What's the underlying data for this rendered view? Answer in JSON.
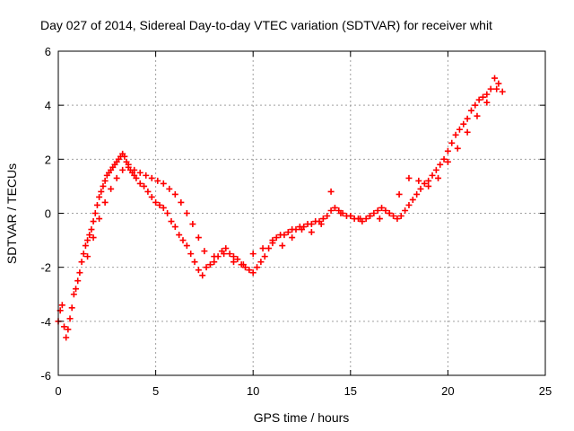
{
  "chart_data": {
    "type": "scatter",
    "title": "Day 027 of 2014, Sidereal Day-to-day VTEC variation (SDTVAR) for receiver whit",
    "xlabel": "GPS time / hours",
    "ylabel": "SDTVAR / TECUs",
    "xlim": [
      0,
      25
    ],
    "ylim": [
      -6,
      6
    ],
    "xticks": [
      0,
      5,
      10,
      15,
      20,
      25
    ],
    "yticks": [
      -6,
      -4,
      -2,
      0,
      2,
      4,
      6
    ],
    "grid": true,
    "marker": "+",
    "series_color": "#ff0000",
    "series": [
      {
        "name": "SDTVAR",
        "x": [
          0.0,
          0.1,
          0.2,
          0.3,
          0.4,
          0.5,
          0.6,
          0.7,
          0.8,
          0.9,
          1.0,
          1.1,
          1.2,
          1.3,
          1.4,
          1.5,
          1.6,
          1.7,
          1.8,
          1.9,
          2.0,
          2.1,
          2.2,
          2.3,
          2.4,
          2.5,
          2.6,
          2.7,
          2.8,
          2.9,
          3.0,
          3.1,
          3.2,
          3.3,
          3.4,
          3.5,
          3.6,
          3.7,
          3.8,
          3.9,
          4.0,
          4.2,
          4.4,
          4.6,
          4.8,
          5.0,
          5.2,
          5.4,
          5.6,
          5.8,
          6.0,
          6.2,
          6.4,
          6.6,
          6.8,
          7.0,
          7.2,
          7.4,
          7.6,
          7.8,
          8.0,
          8.2,
          8.4,
          8.6,
          8.8,
          9.0,
          9.2,
          9.4,
          9.6,
          9.8,
          10.0,
          10.2,
          10.4,
          10.6,
          10.8,
          11.0,
          11.2,
          11.4,
          11.6,
          11.8,
          12.0,
          12.2,
          12.4,
          12.6,
          12.8,
          13.0,
          13.2,
          13.4,
          13.6,
          13.8,
          14.0,
          14.2,
          14.4,
          14.6,
          14.8,
          15.0,
          15.2,
          15.4,
          15.6,
          15.8,
          16.0,
          16.2,
          16.4,
          16.6,
          16.8,
          17.0,
          17.2,
          17.4,
          17.6,
          17.8,
          18.0,
          18.2,
          18.4,
          18.6,
          18.8,
          19.0,
          19.2,
          19.4,
          19.6,
          19.8,
          20.0,
          20.2,
          20.4,
          20.6,
          20.8,
          21.0,
          21.2,
          21.4,
          21.6,
          21.8,
          22.0,
          22.2,
          22.4,
          22.6,
          22.8
        ],
        "y": [
          -4.0,
          -3.6,
          -3.4,
          -4.2,
          -4.6,
          -4.3,
          -3.9,
          -3.5,
          -3.0,
          -2.8,
          -2.5,
          -2.2,
          -1.8,
          -1.5,
          -1.2,
          -1.0,
          -0.8,
          -0.6,
          -0.3,
          0.0,
          0.3,
          0.6,
          0.8,
          1.0,
          1.2,
          1.4,
          1.5,
          1.6,
          1.7,
          1.8,
          1.9,
          2.0,
          2.1,
          2.2,
          2.1,
          1.9,
          1.7,
          1.6,
          1.5,
          1.4,
          1.3,
          1.1,
          1.0,
          0.8,
          0.6,
          0.4,
          0.3,
          0.2,
          0.0,
          -0.3,
          -0.5,
          -0.8,
          -1.0,
          -1.2,
          -1.5,
          -1.8,
          -2.1,
          -2.3,
          -2.0,
          -1.9,
          -1.8,
          -1.6,
          -1.4,
          -1.3,
          -1.5,
          -1.6,
          -1.7,
          -1.9,
          -2.0,
          -2.1,
          -2.2,
          -2.0,
          -1.8,
          -1.6,
          -1.3,
          -1.1,
          -0.9,
          -0.8,
          -0.8,
          -0.7,
          -0.6,
          -0.6,
          -0.5,
          -0.5,
          -0.4,
          -0.4,
          -0.3,
          -0.3,
          -0.2,
          -0.1,
          0.8,
          0.2,
          0.1,
          0.0,
          -0.1,
          -0.1,
          -0.2,
          -0.2,
          -0.3,
          -0.2,
          -0.1,
          0.0,
          0.1,
          0.2,
          0.1,
          0.0,
          -0.1,
          -0.2,
          -0.1,
          0.1,
          0.3,
          0.5,
          0.7,
          0.9,
          1.1,
          1.2,
          1.4,
          1.6,
          1.8,
          2.0,
          2.3,
          2.6,
          2.9,
          3.1,
          3.3,
          3.5,
          3.8,
          4.0,
          4.2,
          4.3,
          4.4,
          4.6,
          5.0,
          4.8,
          4.5
        ],
        "secondary": {
          "x": [
            1.5,
            1.8,
            2.1,
            2.4,
            2.7,
            3.0,
            3.3,
            3.6,
            3.9,
            4.2,
            4.5,
            4.8,
            5.1,
            5.4,
            5.7,
            6.0,
            6.3,
            6.6,
            6.9,
            7.2,
            7.5,
            8.0,
            8.5,
            9.0,
            9.5,
            10.0,
            10.5,
            11.0,
            11.5,
            12.0,
            12.5,
            13.0,
            13.5,
            14.0,
            14.5,
            15.0,
            15.5,
            16.0,
            16.5,
            17.0,
            17.5,
            18.0,
            18.5,
            19.0,
            19.5,
            20.0,
            20.5,
            21.0,
            21.5,
            22.0,
            22.5
          ],
          "y": [
            -1.6,
            -0.9,
            -0.2,
            0.4,
            0.9,
            1.3,
            1.6,
            1.8,
            1.6,
            1.5,
            1.4,
            1.3,
            1.2,
            1.1,
            0.9,
            0.7,
            0.4,
            0.0,
            -0.4,
            -0.9,
            -1.4,
            -1.6,
            -1.5,
            -1.8,
            -1.9,
            -1.5,
            -1.3,
            -1.0,
            -1.2,
            -0.9,
            -0.6,
            -0.7,
            -0.4,
            0.1,
            0.0,
            -0.1,
            -0.2,
            -0.1,
            -0.2,
            0.0,
            0.7,
            1.3,
            1.2,
            1.0,
            1.3,
            1.9,
            2.4,
            3.0,
            3.6,
            4.1,
            4.6
          ]
        }
      }
    ]
  }
}
